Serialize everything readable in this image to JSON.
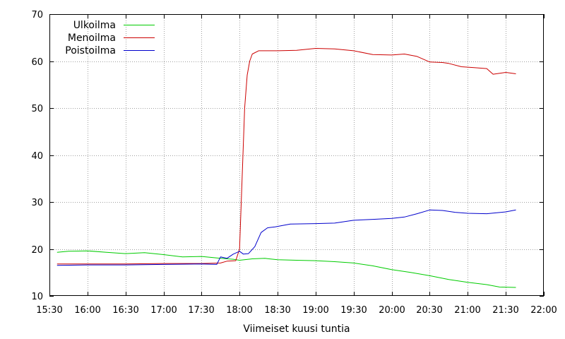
{
  "chart_data": {
    "type": "line",
    "title": "",
    "xlabel": "Viimeiset kuusi tuntia",
    "ylabel": "",
    "x_ticks": [
      "15:30",
      "16:00",
      "16:30",
      "17:00",
      "17:30",
      "18:00",
      "18:30",
      "19:00",
      "19:30",
      "20:00",
      "20:30",
      "21:00",
      "21:30",
      "22:00"
    ],
    "y_ticks": [
      10,
      20,
      30,
      40,
      50,
      60,
      70
    ],
    "xlim": [
      "15:30",
      "22:00"
    ],
    "ylim": [
      10,
      70
    ],
    "grid": true,
    "legend_position": "top-left",
    "series": [
      {
        "name": "Ulkoilma",
        "color": "#00cc00",
        "x": [
          "15:36",
          "15:45",
          "16:00",
          "16:15",
          "16:30",
          "16:45",
          "17:00",
          "17:15",
          "17:30",
          "17:45",
          "17:55",
          "18:00",
          "18:10",
          "18:20",
          "18:30",
          "18:45",
          "19:00",
          "19:15",
          "19:30",
          "19:45",
          "20:00",
          "20:15",
          "20:30",
          "20:45",
          "21:00",
          "21:15",
          "21:25",
          "21:38"
        ],
        "values": [
          19.3,
          19.5,
          19.6,
          19.3,
          19.0,
          19.2,
          18.8,
          18.3,
          18.4,
          18.0,
          17.8,
          17.6,
          17.9,
          18.0,
          17.7,
          17.6,
          17.5,
          17.3,
          17.0,
          16.4,
          15.6,
          15.0,
          14.3,
          13.5,
          12.9,
          12.4,
          11.9,
          11.8
        ]
      },
      {
        "name": "Menoilma",
        "color": "#cc0000",
        "x": [
          "15:36",
          "16:00",
          "16:30",
          "17:00",
          "17:30",
          "17:45",
          "17:50",
          "17:57",
          "18:00",
          "18:02",
          "18:04",
          "18:06",
          "18:08",
          "18:10",
          "18:15",
          "18:30",
          "18:45",
          "19:00",
          "19:15",
          "19:30",
          "19:45",
          "20:00",
          "20:10",
          "20:20",
          "20:30",
          "20:40",
          "20:45",
          "20:55",
          "21:05",
          "21:15",
          "21:20",
          "21:30",
          "21:38"
        ],
        "values": [
          16.8,
          16.8,
          16.8,
          16.9,
          16.9,
          17.0,
          17.4,
          17.5,
          20.0,
          35.0,
          50.0,
          57.0,
          60.0,
          61.5,
          62.2,
          62.2,
          62.3,
          62.7,
          62.6,
          62.2,
          61.4,
          61.3,
          61.5,
          61.0,
          59.8,
          59.7,
          59.5,
          58.8,
          58.6,
          58.4,
          57.2,
          57.6,
          57.3
        ]
      },
      {
        "name": "Poistoilma",
        "color": "#0000cc",
        "x": [
          "15:36",
          "16:00",
          "16:30",
          "17:00",
          "17:30",
          "17:42",
          "17:45",
          "17:50",
          "17:55",
          "18:00",
          "18:03",
          "18:07",
          "18:12",
          "18:17",
          "18:22",
          "18:28",
          "18:40",
          "19:00",
          "19:15",
          "19:30",
          "19:45",
          "20:00",
          "20:10",
          "20:20",
          "20:30",
          "20:40",
          "20:50",
          "21:00",
          "21:15",
          "21:30",
          "21:38"
        ],
        "values": [
          16.5,
          16.6,
          16.6,
          16.7,
          16.8,
          16.7,
          18.3,
          18.0,
          18.9,
          19.5,
          18.9,
          19.0,
          20.5,
          23.5,
          24.5,
          24.7,
          25.3,
          25.4,
          25.5,
          26.1,
          26.3,
          26.5,
          26.8,
          27.5,
          28.3,
          28.2,
          27.8,
          27.6,
          27.5,
          27.9,
          28.3
        ]
      }
    ]
  }
}
